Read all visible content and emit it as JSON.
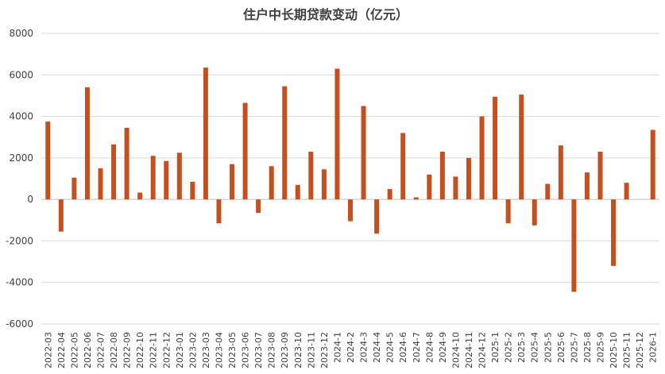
{
  "chart_data": {
    "type": "bar",
    "title": "住户中长期贷款变动（亿元）",
    "xlabel": "",
    "ylabel": "",
    "ylim": [
      -6000,
      8000
    ],
    "yticks": [
      8000,
      6000,
      4000,
      2000,
      0,
      -2000,
      -4000,
      -6000
    ],
    "grid": true,
    "bar_color": "#c5501e",
    "categories": [
      "2022-03",
      "2022-04",
      "2022-05",
      "2022-06",
      "2022-07",
      "2022-08",
      "2022-09",
      "2022-10",
      "2022-11",
      "2022-12",
      "2023-01",
      "2023-02",
      "2023-03",
      "2023-04",
      "2023-05",
      "2023-06",
      "2023-07",
      "2023-08",
      "2023-09",
      "2023-10",
      "2023-11",
      "2023-12",
      "2024-1",
      "2024-2",
      "2024-3",
      "2024-4",
      "2024-5",
      "2024-6",
      "2024-7",
      "2024-8",
      "2024-9",
      "2024-10",
      "2024-11",
      "2024-12",
      "2025-1",
      "2025-2",
      "2025-3",
      "2025-4",
      "2025-5",
      "2025-6",
      "2025-7",
      "2025-8",
      "2025-9",
      "2025-10",
      "2025-11",
      "2025-12",
      "2026-1"
    ],
    "values": [
      3750,
      -1550,
      1050,
      5400,
      1500,
      2650,
      3450,
      330,
      2100,
      1850,
      2250,
      850,
      6350,
      -1150,
      1700,
      4650,
      -650,
      1600,
      5450,
      700,
      2300,
      1450,
      6300,
      -1050,
      4500,
      -1650,
      500,
      3200,
      100,
      1200,
      2300,
      1100,
      2000,
      4000,
      4950,
      -1150,
      5050,
      -1250,
      750,
      2600,
      -4450,
      1300,
      2300,
      -3200,
      800,
      0,
      3350
    ]
  }
}
